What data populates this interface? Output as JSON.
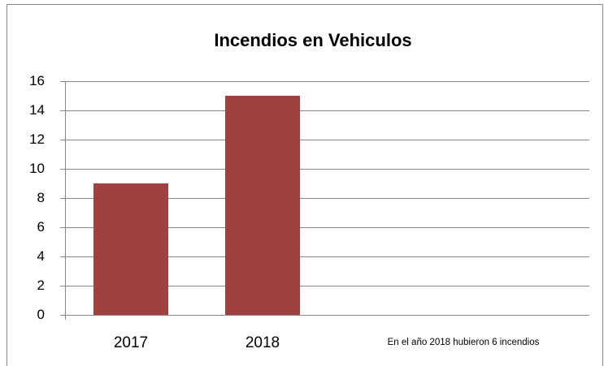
{
  "chart_data": {
    "type": "bar",
    "title": "Incendios en Vehiculos",
    "categories": [
      "2017",
      "2018"
    ],
    "values": [
      9,
      15
    ],
    "color": "#9e413f",
    "ylim": [
      0,
      16
    ],
    "yticks": [
      0,
      2,
      4,
      6,
      8,
      10,
      12,
      14,
      16
    ],
    "grid": true,
    "annotation": "En el año 2018 hubieron  6 incendios"
  }
}
